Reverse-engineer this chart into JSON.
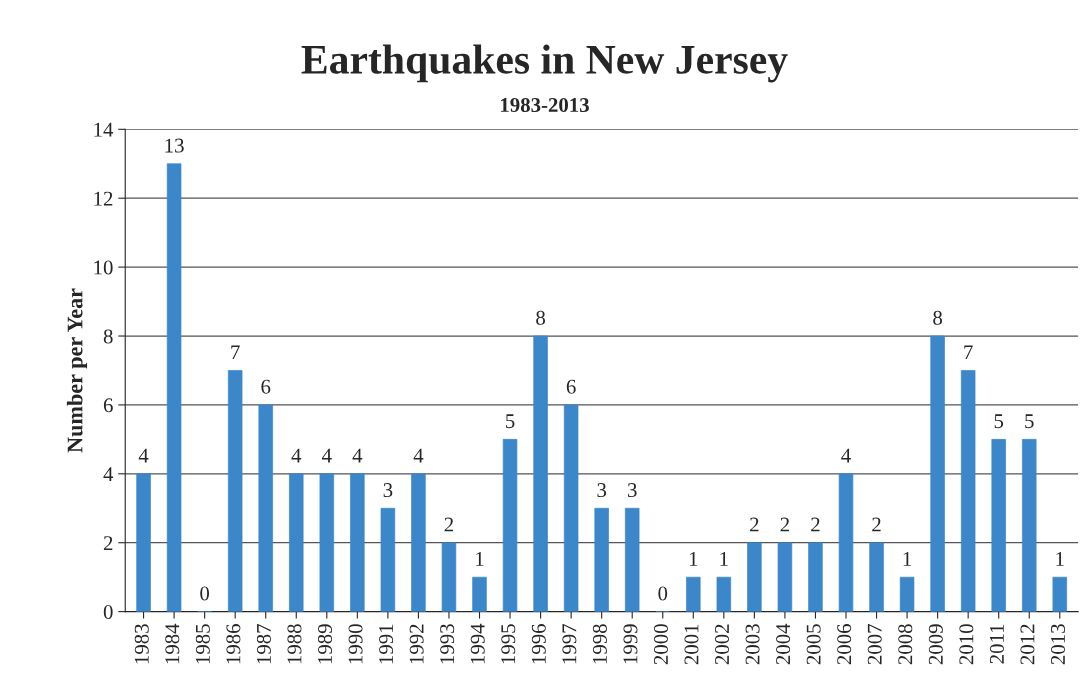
{
  "chart_data": {
    "type": "bar",
    "title": "Earthquakes in New Jersey",
    "subtitle": "1983-2013",
    "ylabel": "Number per Year",
    "categories": [
      "1983",
      "1984",
      "1985",
      "1986",
      "1987",
      "1988",
      "1989",
      "1990",
      "1991",
      "1992",
      "1993",
      "1994",
      "1995",
      "1996",
      "1997",
      "1998",
      "1999",
      "2000",
      "2001",
      "2002",
      "2003",
      "2004",
      "2005",
      "2006",
      "2007",
      "2008",
      "2009",
      "2010",
      "2011",
      "2012",
      "2013"
    ],
    "values": [
      4,
      13,
      0,
      7,
      6,
      4,
      4,
      4,
      3,
      4,
      2,
      1,
      5,
      8,
      6,
      3,
      3,
      0,
      1,
      1,
      2,
      2,
      2,
      4,
      2,
      1,
      8,
      7,
      5,
      5,
      1
    ],
    "color": "#3b87c9",
    "ylim": [
      0,
      14
    ],
    "yticks": [
      0,
      2,
      4,
      6,
      8,
      10,
      12,
      14
    ],
    "grid": "y",
    "data_labels": true,
    "legend": false
  }
}
